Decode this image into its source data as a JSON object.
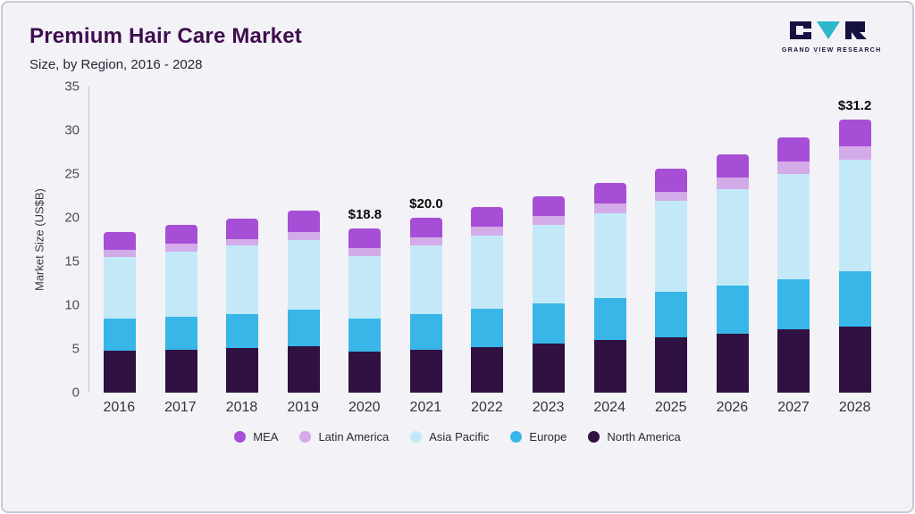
{
  "header": {
    "title": "Premium Hair Care Market",
    "subtitle": "Size, by Region, 2016 - 2028",
    "logo_text": "GRAND VIEW RESEARCH"
  },
  "colors": {
    "title": "#3f0e4f",
    "card_bg": "#f3f2f7",
    "logo_navy": "#16123f",
    "logo_teal": "#2fb6c9"
  },
  "chart_data": {
    "type": "bar",
    "stacked": true,
    "title": "Premium Hair Care Market Size, by Region, 2016 - 2028",
    "ylabel": "Market Size (US$B)",
    "ylim": [
      0,
      35
    ],
    "yticks": [
      0,
      5,
      10,
      15,
      20,
      25,
      30,
      35
    ],
    "categories": [
      "2016",
      "2017",
      "2018",
      "2019",
      "2020",
      "2021",
      "2022",
      "2023",
      "2024",
      "2025",
      "2026",
      "2027",
      "2028"
    ],
    "series": [
      {
        "name": "North America",
        "color": "#2f1142",
        "values": [
          4.8,
          4.9,
          5.1,
          5.3,
          4.7,
          4.9,
          5.2,
          5.6,
          6.0,
          6.3,
          6.7,
          7.2,
          7.6
        ]
      },
      {
        "name": "Europe",
        "color": "#38b6e8",
        "values": [
          3.7,
          3.8,
          3.9,
          4.2,
          3.8,
          4.1,
          4.4,
          4.6,
          4.8,
          5.2,
          5.5,
          5.8,
          6.3
        ]
      },
      {
        "name": "Asia Pacific",
        "color": "#c3e9f9",
        "values": [
          7.0,
          7.4,
          7.8,
          8.0,
          7.1,
          7.8,
          8.4,
          9.0,
          9.7,
          10.4,
          11.1,
          12.0,
          12.7
        ]
      },
      {
        "name": "Latin America",
        "color": "#d4abe9",
        "values": [
          0.8,
          0.9,
          0.8,
          0.9,
          0.9,
          1.0,
          1.0,
          1.0,
          1.1,
          1.1,
          1.3,
          1.4,
          1.6
        ]
      },
      {
        "name": "MEA",
        "color": "#a64fd6",
        "values": [
          2.1,
          2.2,
          2.3,
          2.4,
          2.3,
          2.2,
          2.2,
          2.3,
          2.4,
          2.6,
          2.7,
          2.8,
          3.0
        ]
      }
    ],
    "annotations": [
      {
        "category": "2020",
        "label": "$18.8"
      },
      {
        "category": "2021",
        "label": "$20.0"
      },
      {
        "category": "2028",
        "label": "$31.2"
      }
    ],
    "legend": [
      {
        "label": "MEA",
        "color": "#a64fd6"
      },
      {
        "label": "Latin America",
        "color": "#d4abe9"
      },
      {
        "label": "Asia Pacific",
        "color": "#c3e9f9"
      },
      {
        "label": "Europe",
        "color": "#38b6e8"
      },
      {
        "label": "North America",
        "color": "#2f1142"
      }
    ],
    "legend_position": "bottom",
    "grid": false
  }
}
